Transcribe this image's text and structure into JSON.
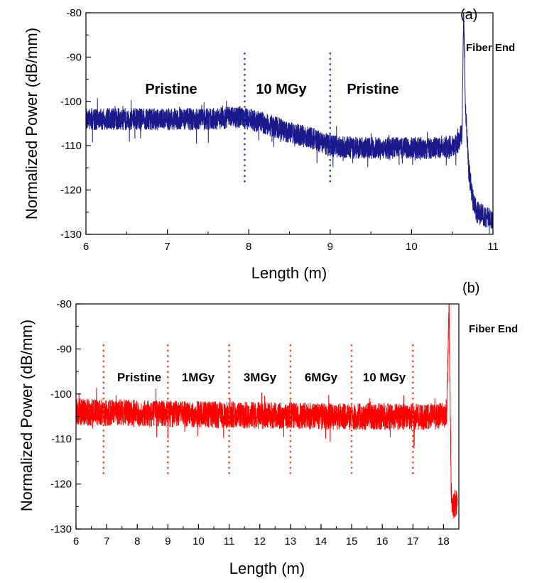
{
  "chart_data": [
    {
      "type": "line",
      "panel_label": "(a)",
      "xlabel": "Length (m)",
      "ylabel": "Normalized Power (dB/mm)",
      "xlim": [
        6,
        11
      ],
      "ylim": [
        -130,
        -80
      ],
      "xticks": [
        6,
        7,
        8,
        9,
        10,
        11
      ],
      "yticks": [
        -80,
        -90,
        -100,
        -110,
        -120,
        -130
      ],
      "line_color": "#1a1a8c",
      "divider_color": "#1f3fd6",
      "grid": false,
      "legend": "none",
      "series": [
        {
          "x": [
            6.0,
            7.0,
            7.5,
            7.9,
            8.2,
            8.5,
            8.8,
            9.0,
            9.3,
            9.6,
            10.0,
            10.3,
            10.55,
            10.62,
            10.64,
            10.66,
            10.7,
            10.75,
            10.8,
            10.9,
            11.0
          ],
          "y": [
            -104,
            -104,
            -104,
            -103.5,
            -105,
            -107,
            -108.5,
            -110,
            -110.5,
            -110.5,
            -110.5,
            -110.5,
            -110,
            -107,
            -80,
            -100,
            -115,
            -122,
            -125,
            -126,
            -127
          ],
          "noise": 2.5
        }
      ],
      "dividers_x": [
        7.95,
        9.0
      ],
      "region_labels": [
        "Pristine",
        "10 MGy",
        "Pristine"
      ],
      "annotations": [
        "Fiber End"
      ]
    },
    {
      "type": "line",
      "panel_label": "(b)",
      "xlabel": "Length (m)",
      "ylabel": "Normalized Power (dB/mm)",
      "xlim": [
        6,
        18.5
      ],
      "ylim": [
        -130,
        -80
      ],
      "xticks": [
        6,
        7,
        8,
        9,
        10,
        11,
        12,
        13,
        14,
        15,
        16,
        17,
        18
      ],
      "yticks": [
        -80,
        -90,
        -100,
        -110,
        -120,
        -130
      ],
      "line_color": "#ff0000",
      "divider_color": "#e8502a",
      "grid": false,
      "legend": "none",
      "series": [
        {
          "x": [
            6.0,
            10.0,
            14.0,
            18.0,
            18.1,
            18.15,
            18.18,
            18.22,
            18.25,
            18.3,
            18.4,
            18.45
          ],
          "y": [
            -104,
            -104.5,
            -105,
            -105,
            -104,
            -90,
            -80,
            -104,
            -122,
            -125,
            -124,
            -125
          ],
          "noise": 3
        }
      ],
      "dividers_x": [
        6.9,
        9.0,
        11.0,
        13.0,
        15.0,
        17.0
      ],
      "region_labels": [
        "Pristine",
        "1MGy",
        "3MGy",
        "6MGy",
        "10 MGy"
      ],
      "annotations": [
        "Fiber End"
      ]
    }
  ]
}
